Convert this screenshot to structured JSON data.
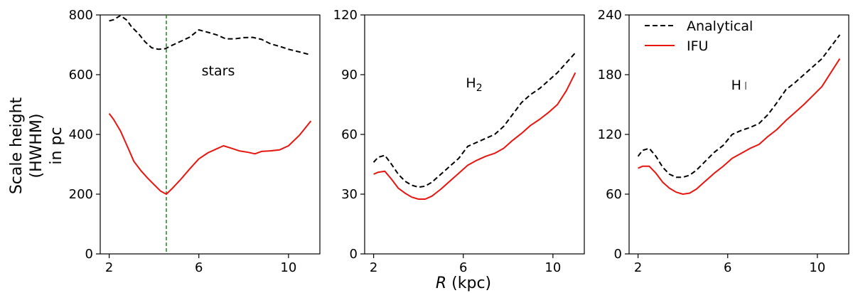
{
  "figure": {
    "shared_ylabel": [
      "Scale height",
      "(HWHM)",
      "in pc"
    ],
    "shared_xlabel_var": "R",
    "shared_xlabel_unit": " (kpc)"
  },
  "legend": {
    "entries": [
      {
        "label": "Analytical",
        "style": "dashed",
        "color": "#000000"
      },
      {
        "label": "IFU",
        "style": "solid",
        "color": "#e8150f"
      }
    ]
  },
  "colors": {
    "analytical": "#000000",
    "ifu": "#e8150f",
    "marker": "#1a8a1a"
  },
  "chart_data": [
    {
      "type": "line",
      "annotation": "stars",
      "xlim": [
        1.6,
        11.4
      ],
      "ylim": [
        0,
        800
      ],
      "xticks": [
        2,
        6,
        10
      ],
      "yticks": [
        0,
        200,
        400,
        600,
        800
      ],
      "vline_x": 4.55,
      "series": [
        {
          "name": "Analytical",
          "x": [
            2.0,
            2.2,
            2.5,
            2.8,
            3.0,
            3.3,
            3.6,
            3.9,
            4.2,
            4.5,
            4.8,
            5.2,
            5.6,
            6.0,
            6.4,
            6.8,
            7.2,
            7.6,
            8.0,
            8.4,
            8.8,
            9.2,
            9.6,
            10.0,
            10.5,
            11.0
          ],
          "y": [
            780,
            784,
            798,
            782,
            760,
            738,
            710,
            690,
            685,
            687,
            698,
            712,
            726,
            750,
            742,
            733,
            720,
            720,
            724,
            725,
            718,
            703,
            695,
            685,
            676,
            666
          ]
        },
        {
          "name": "IFU",
          "x": [
            2.0,
            2.2,
            2.5,
            2.8,
            3.1,
            3.4,
            3.7,
            4.0,
            4.3,
            4.55,
            4.8,
            5.2,
            5.6,
            6.0,
            6.4,
            6.8,
            7.1,
            7.4,
            7.8,
            8.2,
            8.5,
            8.8,
            9.2,
            9.6,
            10.0,
            10.5,
            11.0
          ],
          "y": [
            470,
            450,
            412,
            362,
            310,
            280,
            255,
            232,
            210,
            200,
            218,
            250,
            285,
            318,
            338,
            352,
            362,
            355,
            345,
            340,
            335,
            343,
            345,
            348,
            362,
            398,
            445
          ]
        }
      ]
    },
    {
      "type": "line",
      "annotation": "H2",
      "annotation_base": "H",
      "annotation_sub": "2",
      "xlim": [
        1.6,
        11.4
      ],
      "ylim": [
        0,
        120
      ],
      "xticks": [
        2,
        6,
        10
      ],
      "yticks": [
        0,
        30,
        60,
        90,
        120
      ],
      "series": [
        {
          "name": "Analytical",
          "x": [
            2.0,
            2.2,
            2.5,
            2.8,
            3.1,
            3.4,
            3.7,
            4.0,
            4.3,
            4.6,
            5.0,
            5.4,
            5.8,
            6.2,
            6.6,
            7.0,
            7.4,
            7.8,
            8.2,
            8.6,
            9.0,
            9.4,
            9.8,
            10.2,
            10.6,
            11.0
          ],
          "y": [
            46,
            48.5,
            49.5,
            45,
            40,
            36.5,
            34.5,
            33.5,
            34,
            36,
            40,
            44,
            48,
            54,
            56,
            58,
            60,
            64,
            70,
            76,
            80,
            83,
            87,
            91,
            96,
            101
          ]
        },
        {
          "name": "IFU",
          "x": [
            2.0,
            2.2,
            2.5,
            2.8,
            3.1,
            3.4,
            3.7,
            4.0,
            4.3,
            4.6,
            5.0,
            5.4,
            5.8,
            6.2,
            6.6,
            7.0,
            7.4,
            7.8,
            8.2,
            8.6,
            9.0,
            9.4,
            9.8,
            10.2,
            10.6,
            11.0
          ],
          "y": [
            40,
            41,
            41.5,
            37.5,
            33,
            30.5,
            28.5,
            27.5,
            27.5,
            29,
            32.5,
            36.5,
            40.5,
            44.5,
            47,
            49,
            50.5,
            53,
            57,
            60.5,
            64.5,
            67.5,
            71,
            75,
            82,
            91
          ]
        }
      ]
    },
    {
      "type": "line",
      "annotation": "H I",
      "annotation_base": "H",
      "annotation_sub": "I",
      "xlim": [
        1.6,
        11.4
      ],
      "ylim": [
        0,
        240
      ],
      "xticks": [
        2,
        6,
        10
      ],
      "yticks": [
        0,
        60,
        120,
        180,
        240
      ],
      "series": [
        {
          "name": "Analytical",
          "x": [
            2.0,
            2.2,
            2.5,
            2.8,
            3.1,
            3.4,
            3.7,
            4.0,
            4.3,
            4.6,
            5.0,
            5.4,
            5.8,
            6.2,
            6.6,
            7.0,
            7.4,
            7.8,
            8.2,
            8.6,
            9.0,
            9.4,
            9.8,
            10.2,
            10.6,
            11.0
          ],
          "y": [
            98,
            104,
            106,
            98,
            87,
            80,
            77,
            77,
            79,
            84,
            93,
            102,
            109,
            120,
            124,
            127,
            131,
            140,
            152,
            165,
            172,
            180,
            188,
            196,
            208,
            220
          ]
        },
        {
          "name": "IFU",
          "x": [
            2.0,
            2.2,
            2.5,
            2.8,
            3.1,
            3.4,
            3.7,
            4.0,
            4.3,
            4.6,
            5.0,
            5.4,
            5.8,
            6.2,
            6.6,
            7.0,
            7.4,
            7.8,
            8.2,
            8.6,
            9.0,
            9.4,
            9.8,
            10.2,
            10.6,
            11.0
          ],
          "y": [
            86,
            88,
            88,
            81,
            72,
            66,
            62,
            60,
            61,
            65,
            73,
            81,
            88,
            96,
            101,
            106,
            110,
            118,
            125,
            134,
            142,
            150,
            159,
            168,
            182,
            196
          ]
        }
      ]
    }
  ]
}
